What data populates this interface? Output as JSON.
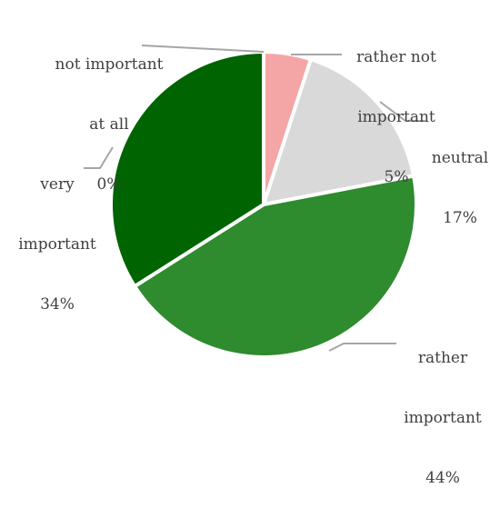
{
  "chart_data": {
    "type": "pie",
    "title": "",
    "slices": [
      {
        "label_lines": [
          "not important",
          "at all"
        ],
        "value": 0,
        "pct_label": "0%",
        "color": "#ff0000"
      },
      {
        "label_lines": [
          "rather not",
          "important"
        ],
        "value": 5,
        "pct_label": "5%",
        "color": "#f4a6a6"
      },
      {
        "label_lines": [
          "neutral"
        ],
        "value": 17,
        "pct_label": "17%",
        "color": "#d9d9d9"
      },
      {
        "label_lines": [
          "rather",
          "important"
        ],
        "value": 44,
        "pct_label": "44%",
        "color": "#2e8b2e"
      },
      {
        "label_lines": [
          "very",
          "important"
        ],
        "value": 34,
        "pct_label": "34%",
        "color": "#006400"
      }
    ],
    "start_angle_deg": 0,
    "direction": "clockwise",
    "legend": "none",
    "leader_line_color": "#a6a6a6"
  }
}
